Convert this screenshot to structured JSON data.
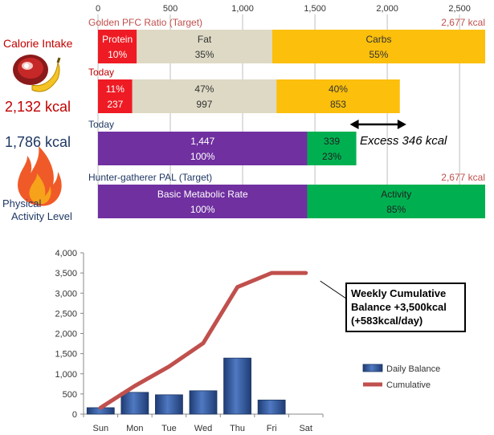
{
  "colors": {
    "protein": "#ee1b24",
    "fat": "#ddd9c4",
    "carbs": "#fbbf0c",
    "bmr": "#7030a0",
    "activity": "#00b050",
    "daily_bar": "#2f5597",
    "cumulative_line": "#c0504d",
    "red_text": "#c00000",
    "blue_text": "#1f3864"
  },
  "left_panel": {
    "calorie_intake_label": "Calorie Intake",
    "calorie_intake_value": "2,132 kcal",
    "pal_value": "1,786 kcal",
    "pal_label_line1": "Physical",
    "pal_label_line2": "Activity Level",
    "icons": [
      "meat-icon",
      "banana-icon",
      "fire-icon"
    ]
  },
  "chart_data": [
    {
      "type": "bar",
      "orientation": "horizontal-stacked",
      "axis_ticks": [
        0,
        500,
        1000,
        1500,
        2000,
        2500
      ],
      "axis_tick_labels": [
        "0",
        "500",
        "1,000",
        "1,500",
        "2,000",
        "2,500"
      ],
      "xlim": [
        0,
        2677
      ],
      "rows": [
        {
          "label": "Golden PFC Ratio (Target)",
          "right_label": "2,677 kcal",
          "segments": [
            {
              "name": "Protein",
              "value": 268,
              "line1": "Protein",
              "line2": "10%",
              "color": "#ee1b24",
              "text_color": "#ffffff"
            },
            {
              "name": "Fat",
              "value": 937,
              "line1": "Fat",
              "line2": "35%",
              "color": "#ddd9c4",
              "text_color": "#333333"
            },
            {
              "name": "Carbs",
              "value": 1472,
              "line1": "Carbs",
              "line2": "55%",
              "color": "#fbbf0c",
              "text_color": "#333333"
            }
          ]
        },
        {
          "label": "Today",
          "segments": [
            {
              "name": "Protein",
              "value": 237,
              "line1": "11%",
              "line2": "237",
              "color": "#ee1b24",
              "text_color": "#ffffff"
            },
            {
              "name": "Fat",
              "value": 997,
              "line1": "47%",
              "line2": "997",
              "color": "#ddd9c4",
              "text_color": "#333333"
            },
            {
              "name": "Carbs",
              "value": 853,
              "line1": "40%",
              "line2": "853",
              "color": "#fbbf0c",
              "text_color": "#333333"
            }
          ]
        },
        {
          "label": "Today",
          "segments": [
            {
              "name": "Basic Metabolic Rate",
              "value": 1447,
              "line1": "1,447",
              "line2": "100%",
              "color": "#7030a0",
              "text_color": "#ffffff"
            },
            {
              "name": "Activity",
              "value": 339,
              "line1": "339",
              "line2": "23%",
              "color": "#00b050",
              "text_color": "#222222"
            }
          ]
        },
        {
          "label": "Hunter-gatherer  PAL (Target)",
          "right_label": "2,677 kcal",
          "segments": [
            {
              "name": "Basic Metabolic Rate",
              "value": 1447,
              "line1": "Basic Metabolic Rate",
              "line2": "100%",
              "color": "#7030a0",
              "text_color": "#ffffff"
            },
            {
              "name": "Activity",
              "value": 1230,
              "line1": "Activity",
              "line2": "85%",
              "color": "#00b050",
              "text_color": "#222222"
            }
          ]
        }
      ],
      "annotation": {
        "text": "Excess 346 kcal",
        "from": 1786,
        "to": 2132
      }
    },
    {
      "type": "bar",
      "categories": [
        "Sun",
        "Mon",
        "Tue",
        "Wed",
        "Thu",
        "Fri",
        "Sat"
      ],
      "ylim": [
        0,
        4000
      ],
      "yticks": [
        0,
        500,
        1000,
        1500,
        2000,
        2500,
        3000,
        3500,
        4000
      ],
      "ytick_labels": [
        "0",
        "500",
        "1,000",
        "1,500",
        "2,000",
        "2,500",
        "3,000",
        "3,500",
        "4,000"
      ],
      "series": [
        {
          "name": "Daily Balance",
          "type": "bar",
          "values": [
            160,
            540,
            480,
            580,
            1390,
            350,
            null
          ]
        },
        {
          "name": "Cumulative",
          "type": "line",
          "values": [
            160,
            700,
            1180,
            1760,
            3150,
            3500,
            3500
          ]
        }
      ],
      "legend": "right",
      "callout": {
        "line1": "Weekly Cumulative",
        "line2": "Balance +3,500kcal",
        "line3": "(+583kcal/day)"
      }
    }
  ]
}
